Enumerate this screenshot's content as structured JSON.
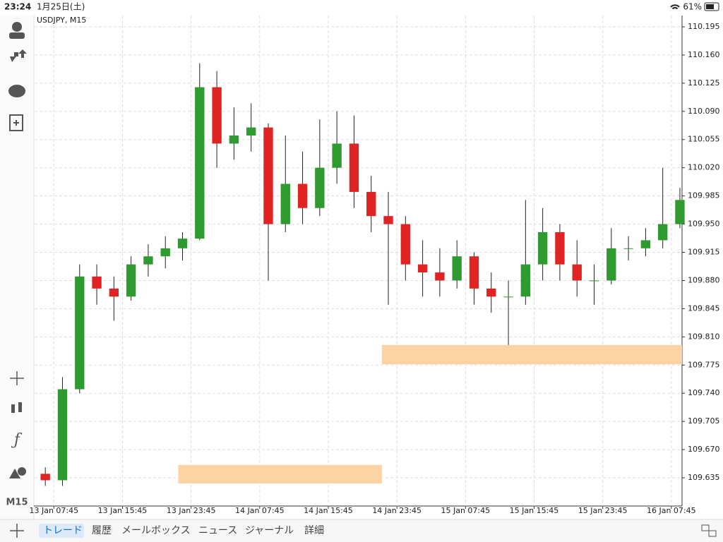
{
  "status_bar": {
    "time": "23:24",
    "date": "1月25日(土)",
    "battery": "61%"
  },
  "toolbar": {
    "timeframe": "M15"
  },
  "tabs": [
    "トレード",
    "履歴",
    "メールボックス",
    "ニュース",
    "ジャーナル",
    "詳細"
  ],
  "chart_data": {
    "type": "candlestick",
    "title": "USDJPY, M15",
    "up_color": "#2f9a2f",
    "down_color": "#e02424",
    "grid": true,
    "xlim": [
      -9,
      293
    ],
    "xticks": [
      {
        "value": 0,
        "label": "13 Jan 07:45"
      },
      {
        "value": 32,
        "label": "13 Jan 15:45"
      },
      {
        "value": 64,
        "label": "13 Jan 23:45"
      },
      {
        "value": 96,
        "label": "14 Jan 07:45"
      },
      {
        "value": 128,
        "label": "14 Jan 15:45"
      },
      {
        "value": 160,
        "label": "14 Jan 23:45"
      },
      {
        "value": 192,
        "label": "15 Jan 07:45"
      },
      {
        "value": 224,
        "label": "15 Jan 15:45"
      },
      {
        "value": 256,
        "label": "15 Jan 23:45"
      },
      {
        "value": 288,
        "label": "16 Jan 07:45"
      }
    ],
    "ylim": [
      109.6,
      110.209
    ],
    "yticks": [
      110.195,
      {
        "value": 110.16,
        "label": "110.160"
      },
      110.125,
      {
        "value": 110.09,
        "label": "110.090"
      },
      110.055,
      {
        "value": 110.02,
        "label": "110.020"
      },
      109.985,
      {
        "value": 109.95,
        "label": "109.950"
      },
      109.915,
      {
        "value": 109.88,
        "label": "109.880"
      },
      109.845,
      {
        "value": 109.81,
        "label": "109.810"
      },
      109.775,
      {
        "value": 109.74,
        "label": "109.740"
      },
      109.705,
      {
        "value": 109.67,
        "label": "109.670"
      },
      109.635
    ],
    "x": [
      -4,
      4,
      12,
      20,
      28,
      36,
      44,
      52,
      60,
      68,
      76,
      84,
      92,
      100,
      108,
      116,
      124,
      132,
      140,
      148,
      156,
      164,
      172,
      180,
      188,
      196,
      204,
      212,
      220,
      228,
      236,
      244,
      252,
      260,
      268,
      276,
      284,
      292
    ],
    "open": [
      109.64,
      109.632,
      109.745,
      109.885,
      109.87,
      109.86,
      109.9,
      109.91,
      109.92,
      109.932,
      110.12,
      110.05,
      110.06,
      110.07,
      109.95,
      110.0,
      109.97,
      110.02,
      110.05,
      109.99,
      109.96,
      109.95,
      109.9,
      109.89,
      109.88,
      109.91,
      109.87,
      109.86,
      109.86,
      109.9,
      109.94,
      109.9,
      109.88,
      109.88,
      109.92,
      109.92,
      109.93,
      109.95
    ],
    "high": [
      109.648,
      109.76,
      109.9,
      109.9,
      109.885,
      109.91,
      109.925,
      109.935,
      109.94,
      110.15,
      110.14,
      110.095,
      110.1,
      110.075,
      110.06,
      110.04,
      110.08,
      110.09,
      110.085,
      110.01,
      109.99,
      109.96,
      109.93,
      109.92,
      109.93,
      109.915,
      109.89,
      109.88,
      109.98,
      109.97,
      109.95,
      109.93,
      109.9,
      109.945,
      109.935,
      109.945,
      110.02,
      109.995
    ],
    "low": [
      109.625,
      109.625,
      109.74,
      109.85,
      109.83,
      109.855,
      109.885,
      109.895,
      109.905,
      109.93,
      110.02,
      110.03,
      110.04,
      109.88,
      109.94,
      109.95,
      109.96,
      110.0,
      109.97,
      109.94,
      109.85,
      109.88,
      109.86,
      109.86,
      109.87,
      109.85,
      109.84,
      109.8,
      109.85,
      109.88,
      109.88,
      109.86,
      109.85,
      109.875,
      109.905,
      109.91,
      109.92,
      109.945
    ],
    "close": [
      109.632,
      109.745,
      109.885,
      109.87,
      109.86,
      109.9,
      109.91,
      109.92,
      109.932,
      110.12,
      110.05,
      110.06,
      110.07,
      109.95,
      110.0,
      109.97,
      110.02,
      110.05,
      109.99,
      109.96,
      109.95,
      109.9,
      109.89,
      109.88,
      109.91,
      109.87,
      109.86,
      109.86,
      109.9,
      109.94,
      109.9,
      109.88,
      109.88,
      109.92,
      109.92,
      109.93,
      109.95,
      109.98
    ],
    "zones": [
      {
        "x": [
          58,
          153
        ],
        "y": [
          109.628,
          109.651
        ],
        "color": "#fdd3a3"
      },
      {
        "x": [
          153,
          293
        ],
        "y": [
          109.776,
          109.8
        ],
        "color": "#fdd3a3"
      }
    ]
  }
}
